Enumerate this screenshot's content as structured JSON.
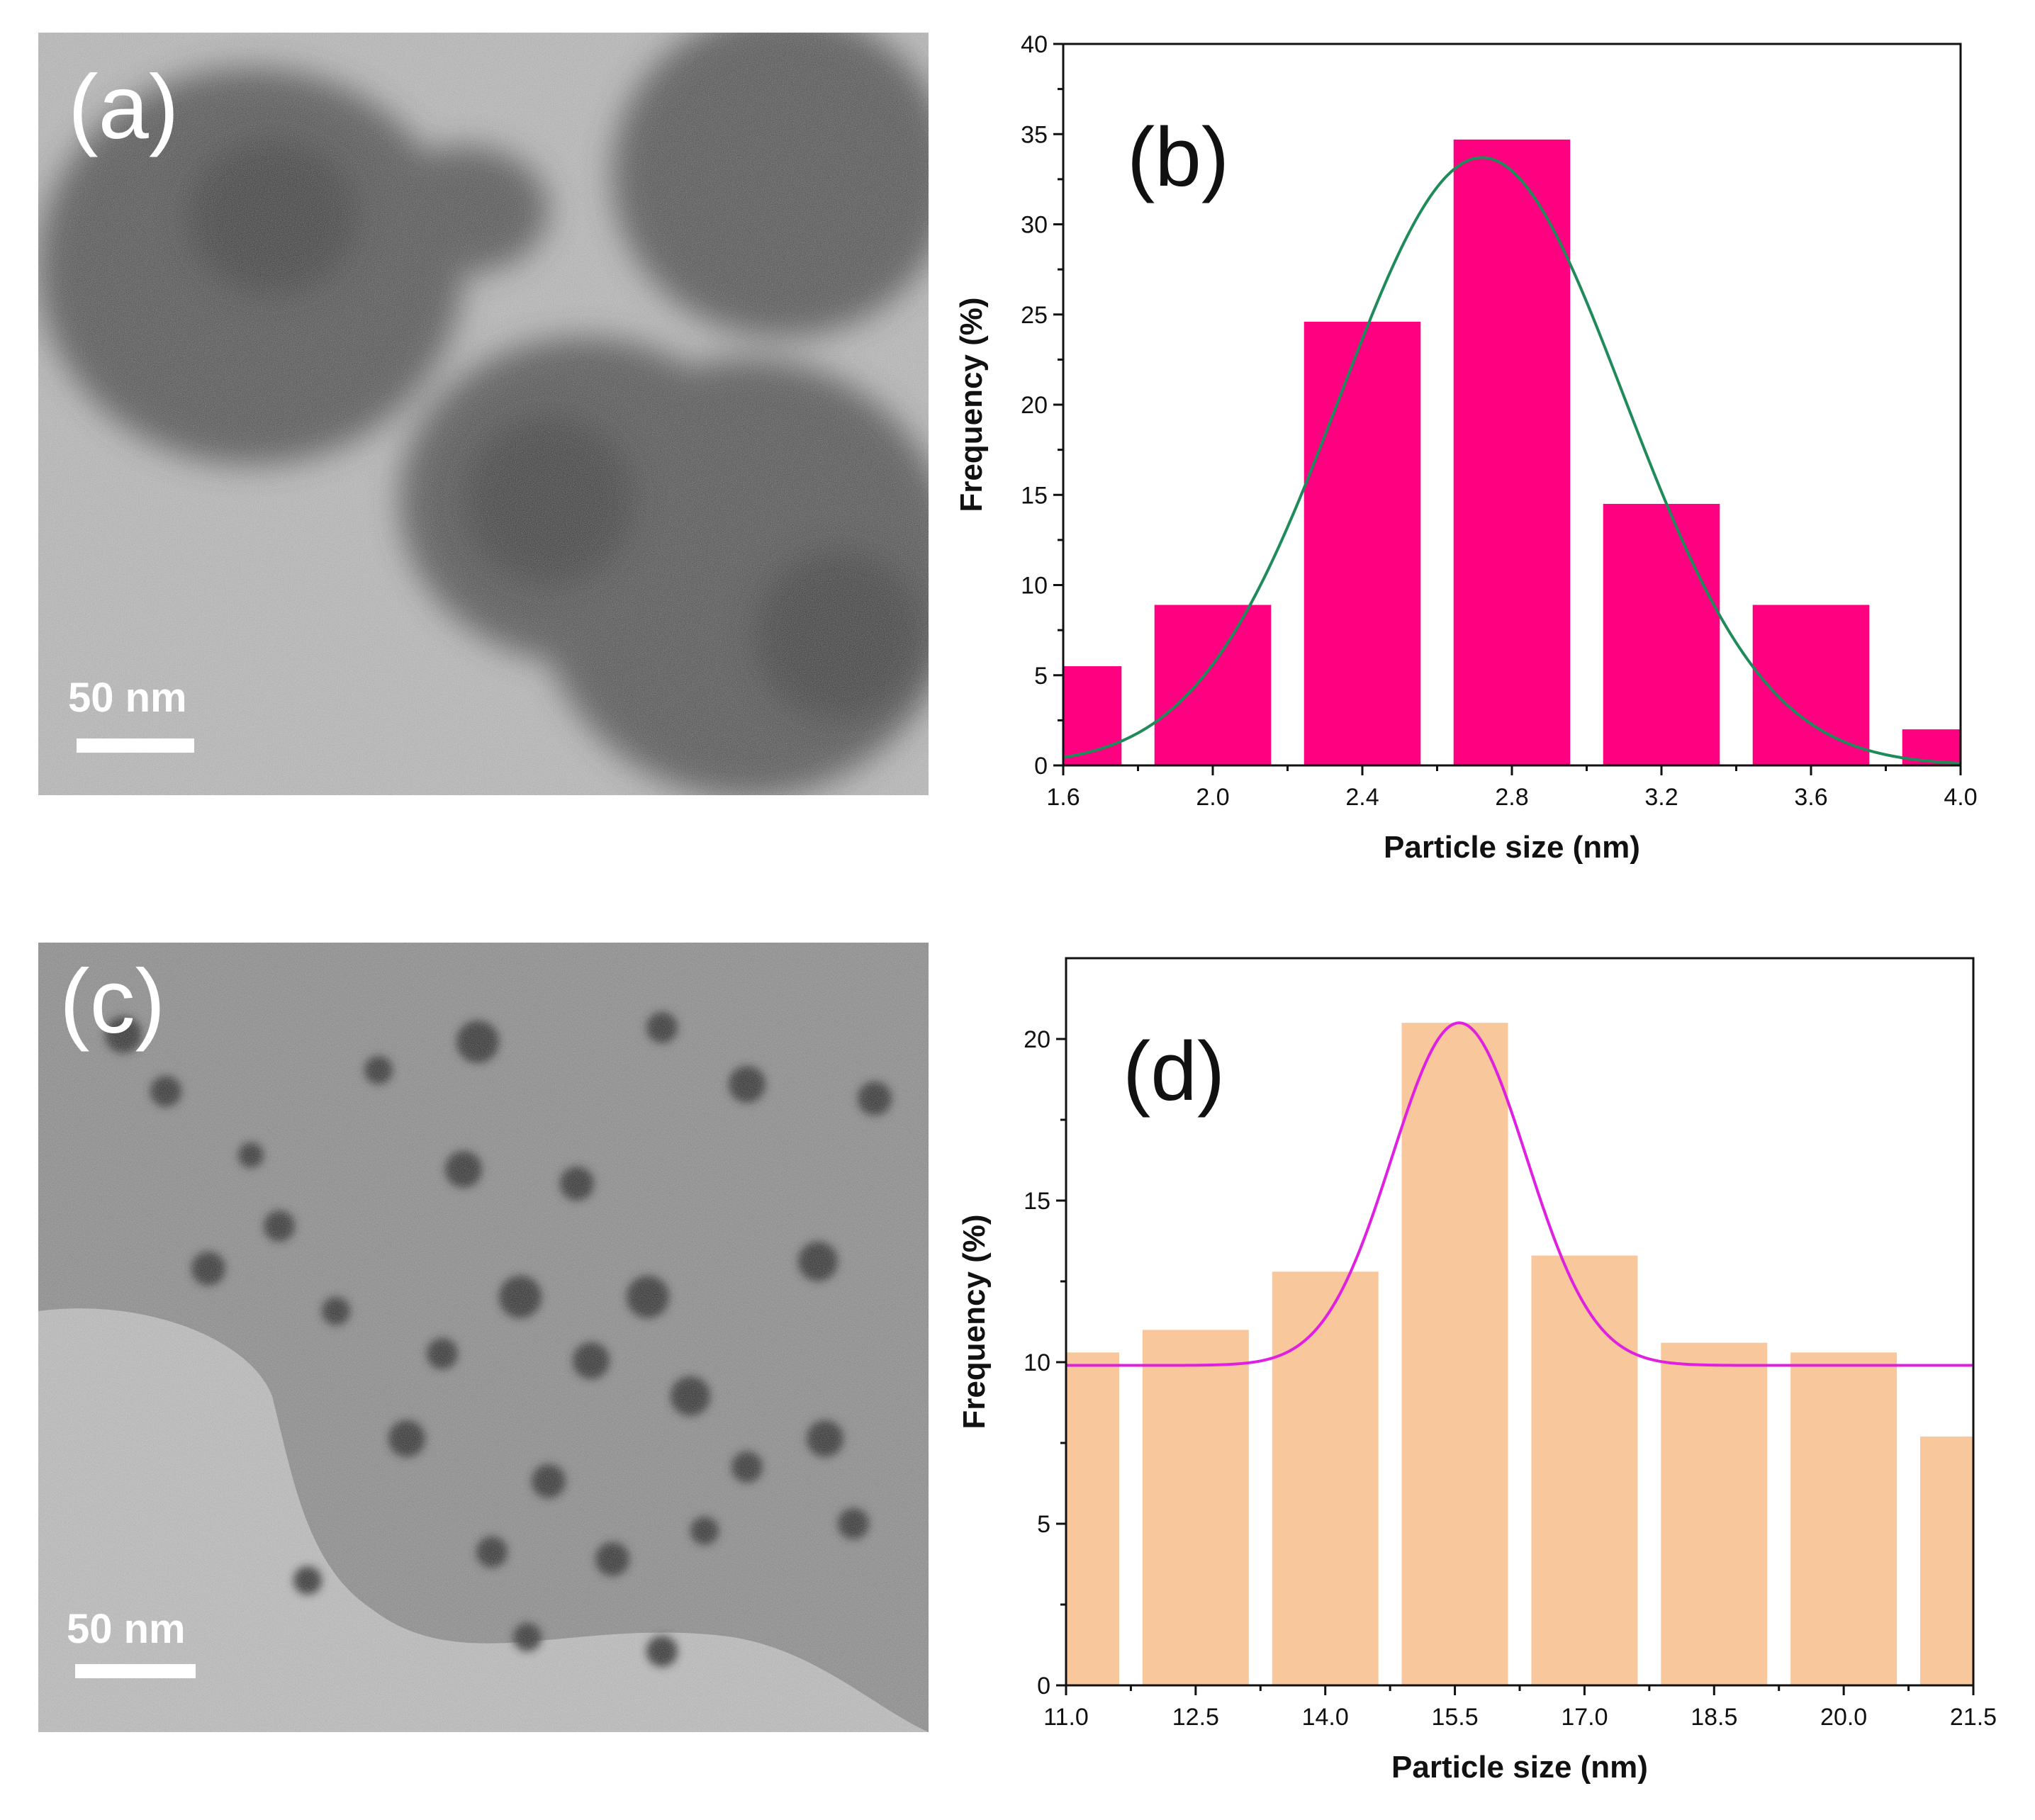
{
  "panels": {
    "a": {
      "label": "(a)",
      "scale_bar": "50 nm"
    },
    "c": {
      "label": "(c)",
      "scale_bar": "50 nm"
    }
  },
  "colors": {
    "bar_b": "#ff0080",
    "fit_b": "#1f8a5a",
    "bar_d": "#f8c79b",
    "fit_d": "#e020e0"
  },
  "chart_data": [
    {
      "panel": "(b)",
      "type": "bar",
      "title": "",
      "xlabel": "Particle size (nm)",
      "ylabel": "Frequency (%)",
      "xlim": [
        1.6,
        4.0
      ],
      "ylim": [
        0,
        40
      ],
      "xticks": [
        "1.6",
        "2.0",
        "2.4",
        "2.8",
        "3.2",
        "3.6",
        "4.0"
      ],
      "yticks": [
        "0",
        "5",
        "10",
        "15",
        "20",
        "25",
        "30",
        "35",
        "40"
      ],
      "bin_width": 0.4,
      "bin_centers": [
        1.6,
        2.0,
        2.4,
        2.8,
        3.2,
        3.6,
        4.0
      ],
      "values": [
        5.5,
        8.9,
        24.6,
        34.7,
        14.5,
        8.9,
        2.0
      ],
      "fit": {
        "type": "gaussian",
        "center": 2.72,
        "amplitude": 33.7,
        "sigma": 0.38
      }
    },
    {
      "panel": "(d)",
      "type": "bar",
      "title": "",
      "xlabel": "Particle size (nm)",
      "ylabel": "Frequency (%)",
      "xlim": [
        11.0,
        21.5
      ],
      "ylim": [
        0,
        22.5
      ],
      "xticks": [
        "11.0",
        "12.5",
        "14.0",
        "15.5",
        "17.0",
        "18.5",
        "20.0",
        "21.5"
      ],
      "yticks": [
        "0",
        "5",
        "10",
        "15",
        "20"
      ],
      "bin_width": 1.5,
      "bin_centers": [
        11.0,
        12.5,
        14.0,
        15.5,
        17.0,
        18.5,
        20.0,
        21.5
      ],
      "values": [
        10.3,
        11.0,
        12.8,
        20.5,
        13.3,
        10.6,
        10.3,
        7.7
      ],
      "fit": {
        "type": "gaussian",
        "center": 15.55,
        "amplitude": 10.6,
        "sigma": 0.78,
        "baseline": 9.9
      }
    }
  ]
}
